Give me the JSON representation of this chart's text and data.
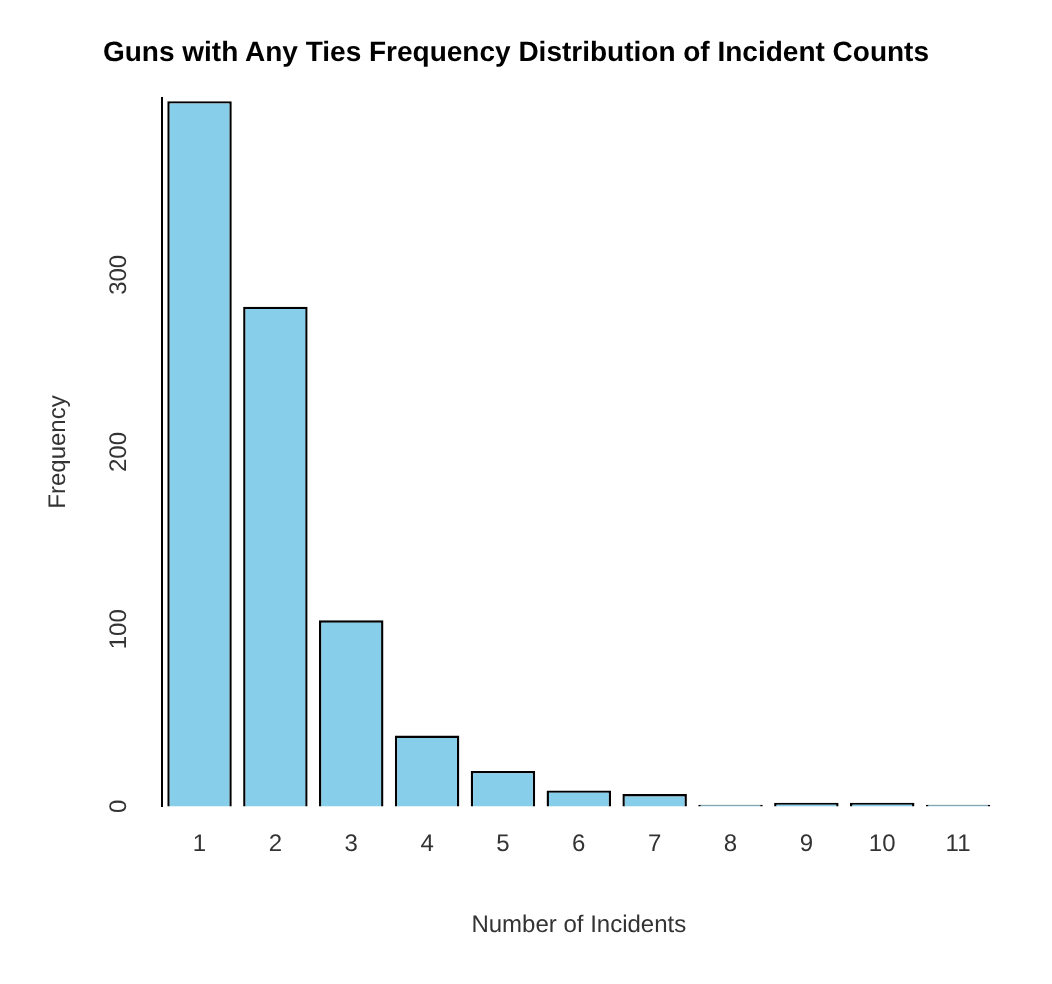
{
  "chart_data": {
    "type": "bar",
    "title": "Guns with Any Ties Frequency Distribution of Incident Counts",
    "xlabel": "Number of Incidents",
    "ylabel": "Frequency",
    "categories": [
      "1",
      "2",
      "3",
      "4",
      "5",
      "6",
      "7",
      "8",
      "9",
      "10",
      "11"
    ],
    "values": [
      398,
      282,
      105,
      40,
      20,
      9,
      7,
      1,
      2,
      2,
      1
    ],
    "color": "#87ceeb",
    "ylim": [
      0,
      400
    ],
    "yticks": [
      0,
      100,
      200,
      300
    ],
    "grid": false
  }
}
